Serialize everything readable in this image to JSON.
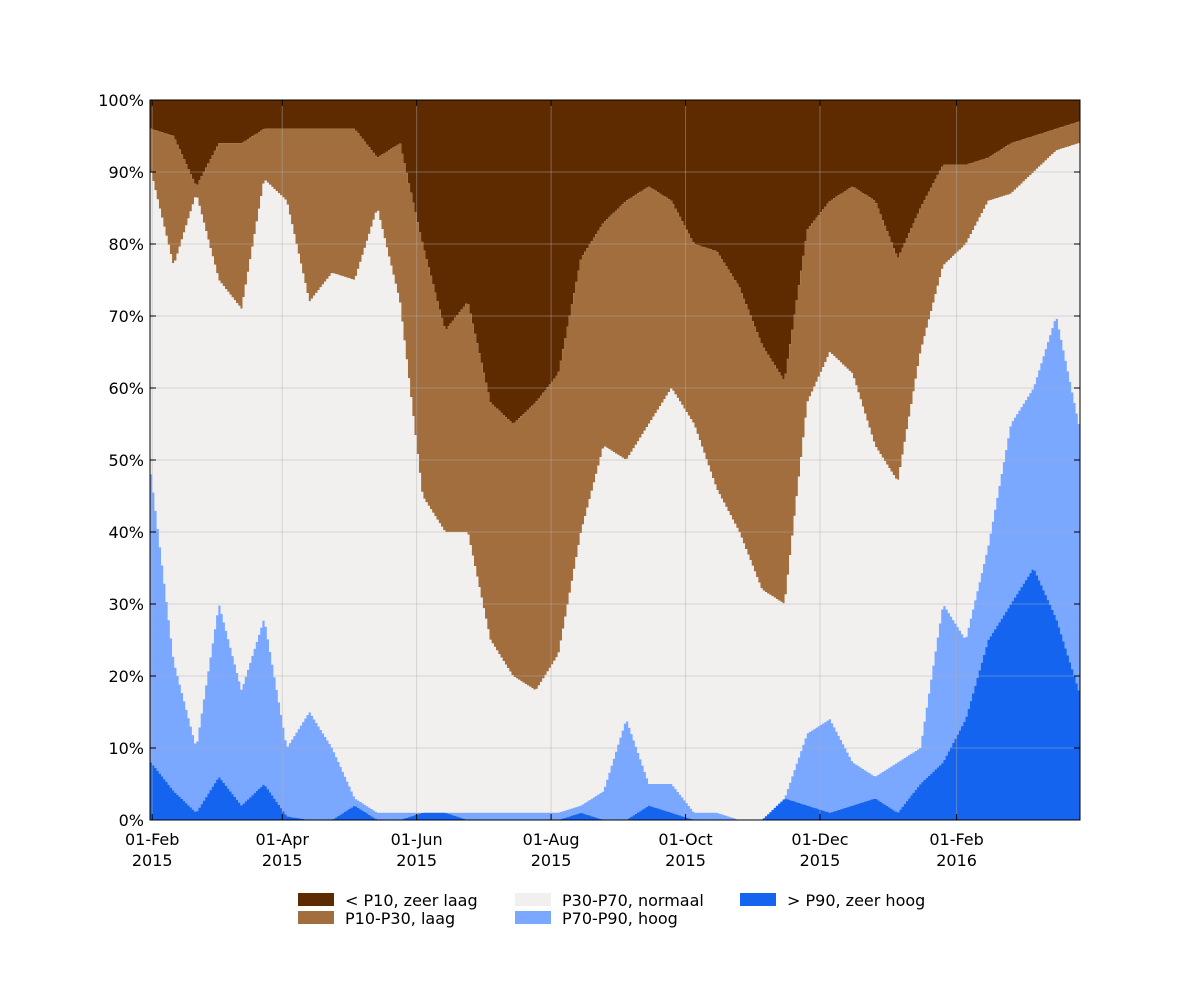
{
  "chart_data": {
    "type": "area",
    "stacked": true,
    "normalized": true,
    "x_start": "2015-01-31",
    "x_end": "2016-03-27",
    "x_step": "daily",
    "x": [
      "2015-02-01",
      "2015-03-01",
      "2015-04-01",
      "2015-05-01",
      "2015-06-01",
      "2015-07-01",
      "2015-08-01",
      "2015-09-01",
      "2015-10-01",
      "2015-11-01",
      "2015-12-01",
      "2016-01-01",
      "2016-02-01",
      "2016-03-01",
      "2016-03-27"
    ],
    "xticks": [
      {
        "date": "2015-02-01",
        "line1": "01-Feb",
        "line2": "2015"
      },
      {
        "date": "2015-04-01",
        "line1": "01-Apr",
        "line2": "2015"
      },
      {
        "date": "2015-06-01",
        "line1": "01-Jun",
        "line2": "2015"
      },
      {
        "date": "2015-08-01",
        "line1": "01-Aug",
        "line2": "2015"
      },
      {
        "date": "2015-10-01",
        "line1": "01-Oct",
        "line2": "2015"
      },
      {
        "date": "2015-12-01",
        "line1": "01-Dec",
        "line2": "2015"
      },
      {
        "date": "2016-02-01",
        "line1": "01-Feb",
        "line2": "2016"
      }
    ],
    "ylim": [
      0,
      100
    ],
    "yticks": [
      "0%",
      "10%",
      "20%",
      "30%",
      "40%",
      "50%",
      "60%",
      "70%",
      "80%",
      "90%",
      "100%"
    ],
    "grid": true,
    "title": "",
    "xlabel": "",
    "ylabel": "",
    "legend_position": "bottom",
    "series": [
      {
        "name": "< P10, zeer laag",
        "color": "#5e2a00"
      },
      {
        "name": "P10-P30, laag",
        "color": "#a36e3d"
      },
      {
        "name": "P30-P70, normaal",
        "color": "#f2f0ef"
      },
      {
        "name": "P70-P90, hoog",
        "color": "#7aa7ff"
      },
      {
        "name": "> P90, zeer hoog",
        "color": "#1464f0"
      }
    ],
    "cumulative_percent": {
      "above_p90": [
        8,
        4,
        1,
        6,
        2,
        5,
        0.5,
        0,
        0,
        2,
        0,
        0,
        1,
        1,
        0,
        0,
        0,
        0,
        0,
        1,
        0,
        0,
        2,
        1,
        0,
        0,
        0,
        0,
        3,
        2,
        1,
        2,
        3,
        1,
        5,
        8,
        14,
        25,
        30,
        35,
        28,
        18
      ],
      "above_p70": [
        48,
        22,
        10,
        30,
        18,
        28,
        10,
        15,
        10,
        3,
        1,
        1,
        1,
        1,
        1,
        1,
        1,
        1,
        1,
        2,
        4,
        14,
        5,
        5,
        1,
        1,
        0,
        0,
        3,
        12,
        14,
        8,
        6,
        8,
        10,
        30,
        25,
        38,
        55,
        60,
        70,
        55
      ],
      "above_p30": [
        90,
        77,
        87,
        75,
        71,
        89,
        86,
        72,
        76,
        75,
        85,
        72,
        45,
        40,
        40,
        25,
        20,
        18,
        23,
        40,
        52,
        50,
        55,
        60,
        55,
        46,
        40,
        32,
        30,
        58,
        65,
        62,
        52,
        47,
        65,
        77,
        80,
        86,
        87,
        90,
        93,
        94
      ],
      "above_p10": [
        96,
        95,
        88,
        94,
        94,
        96,
        96,
        96,
        96,
        96,
        92,
        94,
        80,
        68,
        72,
        58,
        55,
        58,
        62,
        78,
        83,
        86,
        88,
        86,
        80,
        79,
        74,
        66,
        61,
        82,
        86,
        88,
        86,
        78,
        85,
        91,
        91,
        92,
        94,
        95,
        96,
        97
      ]
    }
  },
  "legend": [
    {
      "label": "< P10, zeer laag",
      "color": "#5e2a00"
    },
    {
      "label": "P10-P30, laag",
      "color": "#a36e3d"
    },
    {
      "label": "P30-P70, normaal",
      "color": "#f2f0ef"
    },
    {
      "label": "P70-P90, hoog",
      "color": "#7aa7ff"
    },
    {
      "label": "> P90, zeer hoog",
      "color": "#1464f0"
    }
  ]
}
